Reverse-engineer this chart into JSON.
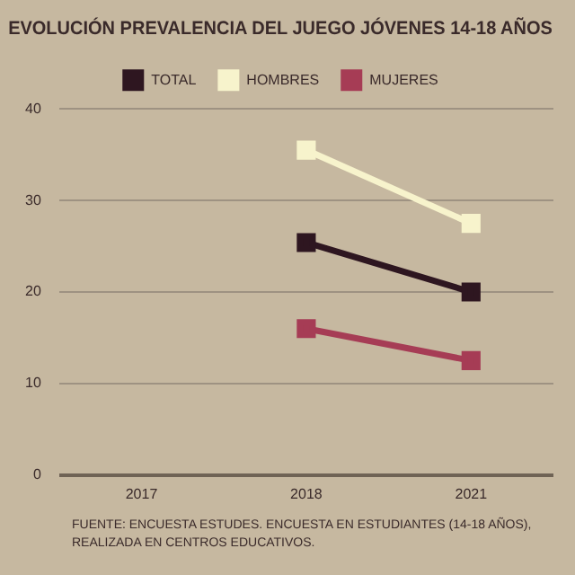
{
  "chart_data": {
    "type": "line",
    "title": "EVOLUCIÓN PREVALENCIA DEL JUEGO JÓVENES 14-18 AÑOS",
    "categories": [
      "2017",
      "2018",
      "2021"
    ],
    "series": [
      {
        "name": "TOTAL",
        "color": "#2e1620",
        "values": [
          null,
          25.4,
          20.0
        ]
      },
      {
        "name": "HOMBRES",
        "color": "#f7f3cc",
        "values": [
          null,
          35.5,
          27.5
        ]
      },
      {
        "name": "MUJERES",
        "color": "#a63c55",
        "values": [
          null,
          16.0,
          12.5
        ]
      }
    ],
    "ylim": [
      0,
      40
    ],
    "yticks": [
      0,
      10,
      20,
      30,
      40
    ],
    "grid": "y",
    "legend": "top",
    "marker": "square",
    "line_style": "solid",
    "annotations": [
      "FUENTE: ENCUESTA ESTUDES. ENCUESTA EN ESTUDIANTES (14-18 AÑOS), REALIZADA EN CENTROS EDUCATIVOS."
    ]
  }
}
